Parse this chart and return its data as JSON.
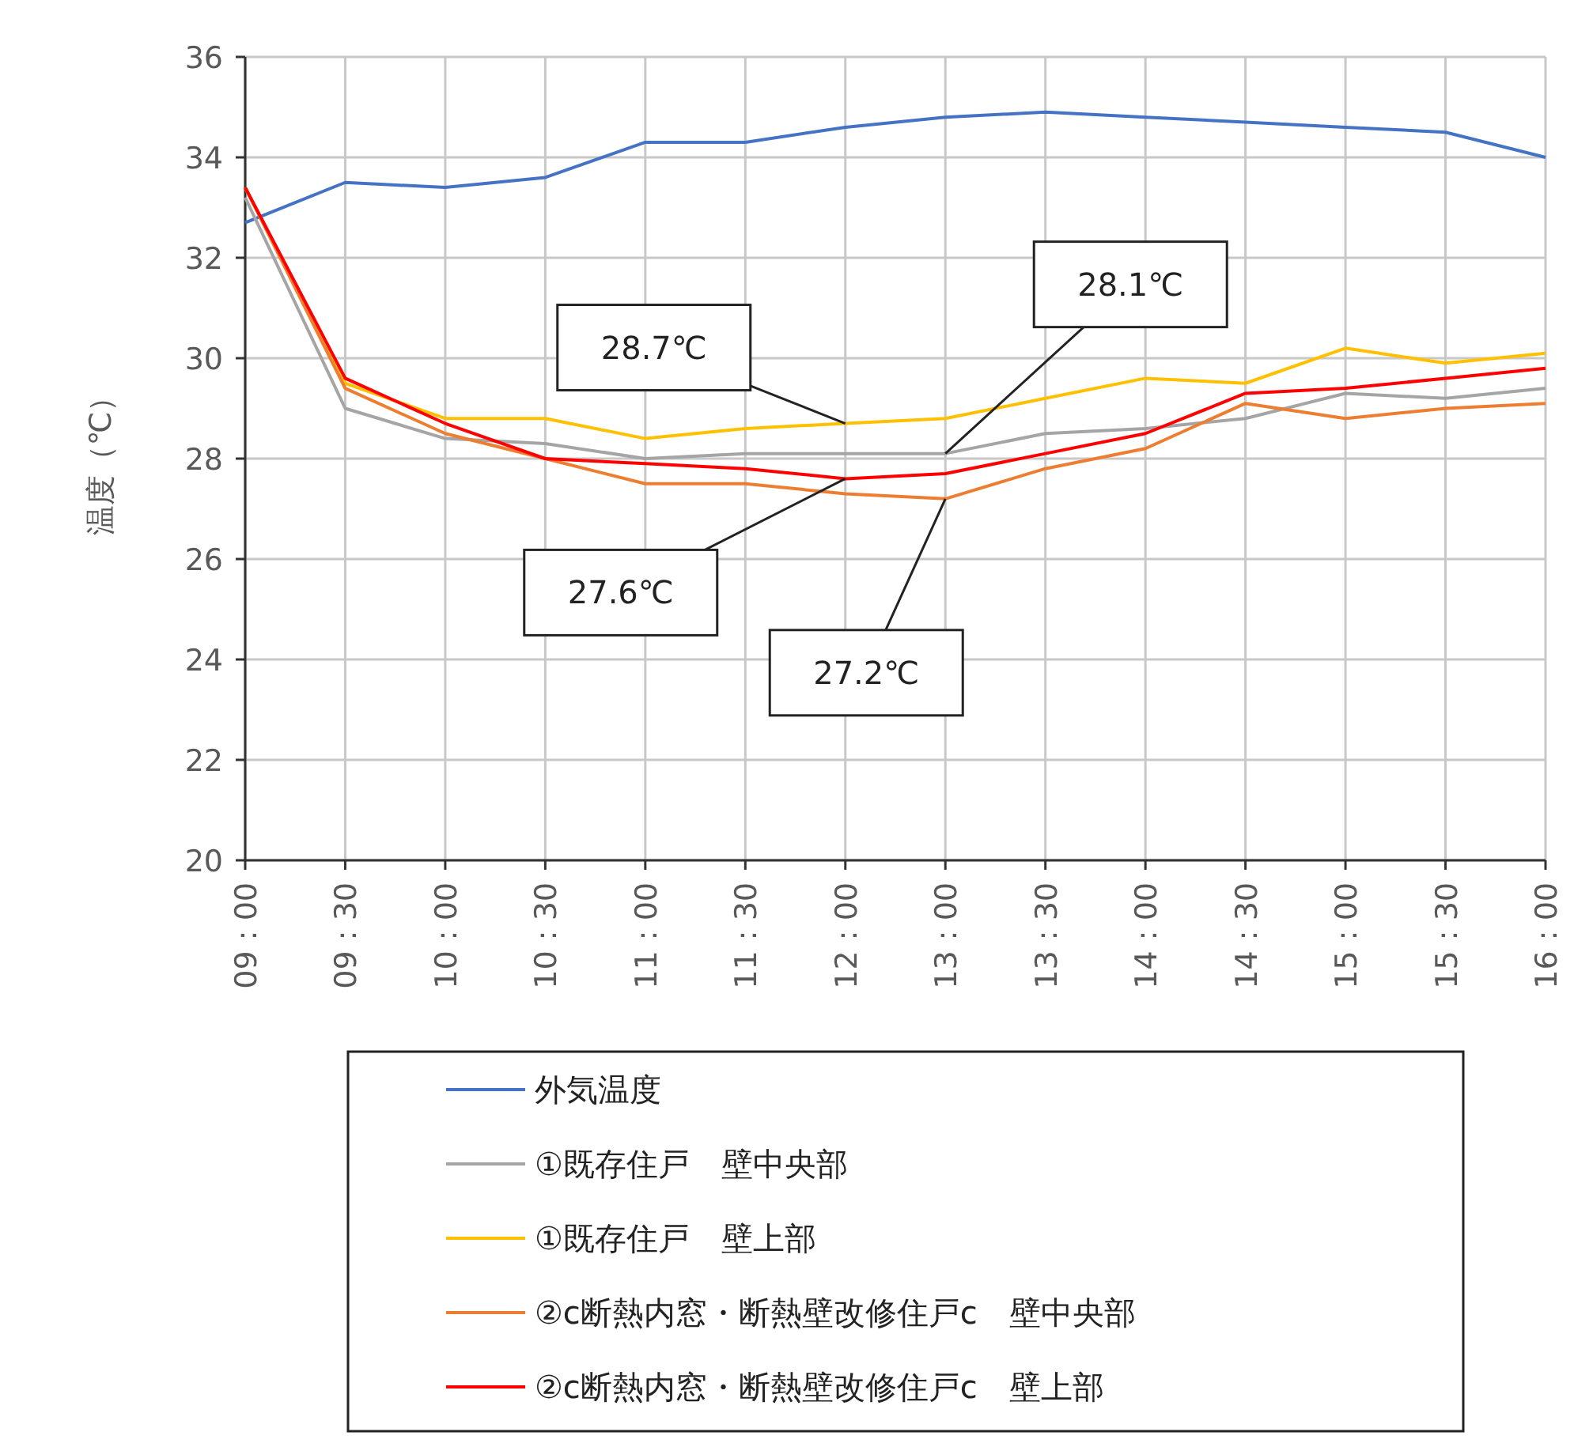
{
  "chart_data": {
    "type": "line",
    "ylabel": "温度（℃）",
    "categories": [
      "09：00",
      "09：30",
      "10：00",
      "10：30",
      "11：00",
      "11：30",
      "12：00",
      "13：00",
      "13：30",
      "14：00",
      "14：30",
      "15：00",
      "15：30",
      "16：00"
    ],
    "series": [
      {
        "name": "外気温度",
        "color": "#4472c4",
        "values": [
          32.7,
          33.5,
          33.4,
          33.6,
          34.3,
          34.3,
          34.6,
          34.8,
          34.9,
          34.8,
          34.7,
          34.6,
          34.5,
          34.0
        ]
      },
      {
        "name": "①既存住戸　壁中央部",
        "color": "#a5a5a5",
        "values": [
          33.2,
          29.0,
          28.4,
          28.3,
          28.0,
          28.1,
          28.1,
          28.1,
          28.5,
          28.6,
          28.8,
          29.3,
          29.2,
          29.4
        ]
      },
      {
        "name": "①既存住戸　壁上部",
        "color": "#ffc000",
        "values": [
          33.4,
          29.5,
          28.8,
          28.8,
          28.4,
          28.6,
          28.7,
          28.8,
          29.2,
          29.6,
          29.5,
          30.2,
          29.9,
          30.1
        ]
      },
      {
        "name": "②c断熱内窓・断熱壁改修住戸c　壁中央部",
        "color": "#ed7d31",
        "values": [
          33.4,
          29.4,
          28.5,
          28.0,
          27.5,
          27.5,
          27.3,
          27.2,
          27.8,
          28.2,
          29.1,
          28.8,
          29.0,
          29.1
        ]
      },
      {
        "name": "②c断熱内窓・断熱壁改修住戸c　壁上部",
        "color": "#ff0000",
        "values": [
          33.4,
          29.6,
          28.7,
          28.0,
          27.9,
          27.8,
          27.6,
          27.7,
          28.1,
          28.5,
          29.3,
          29.4,
          29.6,
          29.8
        ]
      }
    ],
    "ylim": [
      20,
      36
    ],
    "yticks": [
      20,
      22,
      24,
      26,
      28,
      30,
      32,
      34,
      36
    ],
    "grid": true,
    "legend": "bottom",
    "annotations": [
      {
        "text": "28.7℃",
        "x": "12：00",
        "y": 28.7
      },
      {
        "text": "28.1℃",
        "x": "13：00",
        "y": 28.1
      },
      {
        "text": "27.6℃",
        "x": "12：00",
        "y": 27.6
      },
      {
        "text": "27.2℃",
        "x": "13：00",
        "y": 27.2
      }
    ]
  }
}
